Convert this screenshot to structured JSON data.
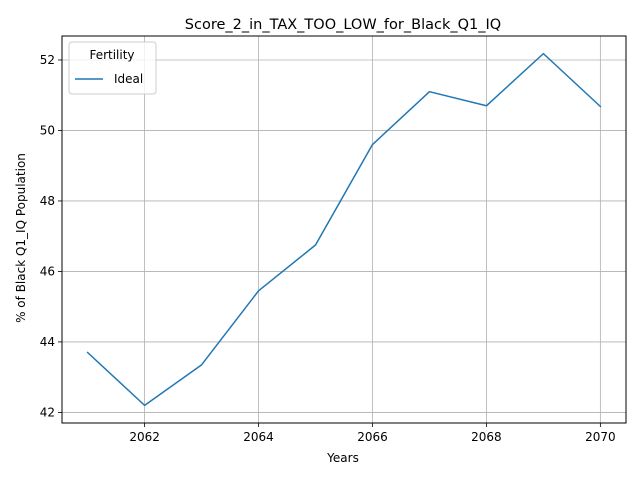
{
  "chart_data": {
    "type": "line",
    "title": "Score_2_in_TAX_TOO_LOW_for_Black_Q1_IQ",
    "xlabel": "Years",
    "ylabel": "% of Black Q1_IQ Population",
    "xlim": [
      2060.55,
      2070.45
    ],
    "ylim": [
      41.7,
      52.68
    ],
    "xticks": [
      2062,
      2064,
      2066,
      2068,
      2070
    ],
    "yticks": [
      42,
      44,
      46,
      48,
      50,
      52
    ],
    "grid": true,
    "legend": {
      "title": "Fertility",
      "placement": "top-left"
    },
    "x": [
      2061,
      2062,
      2063,
      2064,
      2065,
      2066,
      2067,
      2068,
      2069,
      2070
    ],
    "series": [
      {
        "name": "Ideal",
        "color": "#1f77b4",
        "values": [
          43.7,
          42.2,
          43.35,
          45.45,
          46.75,
          49.6,
          51.1,
          50.7,
          52.18,
          50.68
        ]
      }
    ]
  }
}
